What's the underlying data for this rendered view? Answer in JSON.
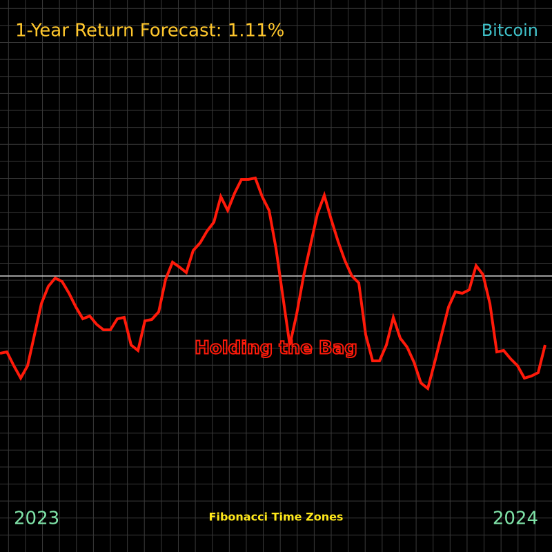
{
  "chart_data": {
    "type": "line",
    "title": "1-Year Return Forecast: 1.11%",
    "subtitle": "Bitcoin",
    "annotation": "Holding the Bag",
    "footer": "Fibonacci Time Zones",
    "xlabels": [
      "2023",
      "2024"
    ],
    "color": "#ff1a0a",
    "ylim": [
      -400,
      400
    ],
    "reference": 0,
    "grid": true,
    "values": [
      -112,
      -110,
      -130,
      -148,
      -130,
      -85,
      -40,
      -15,
      -3,
      -8,
      -25,
      -45,
      -62,
      -58,
      -70,
      -78,
      -78,
      -62,
      -60,
      -100,
      -108,
      -65,
      -63,
      -52,
      -5,
      20,
      13,
      5,
      37,
      48,
      65,
      78,
      115,
      95,
      120,
      140,
      140,
      142,
      115,
      95,
      40,
      -30,
      -100,
      -55,
      0,
      45,
      90,
      117,
      82,
      50,
      22,
      0,
      -10,
      -85,
      -123,
      -123,
      -100,
      -60,
      -90,
      -103,
      -125,
      -155,
      -163,
      -125,
      -85,
      -45,
      -23,
      -25,
      -20,
      15,
      2,
      -40,
      -110,
      -108,
      -120,
      -130,
      -148,
      -145,
      -140,
      -100
    ]
  }
}
